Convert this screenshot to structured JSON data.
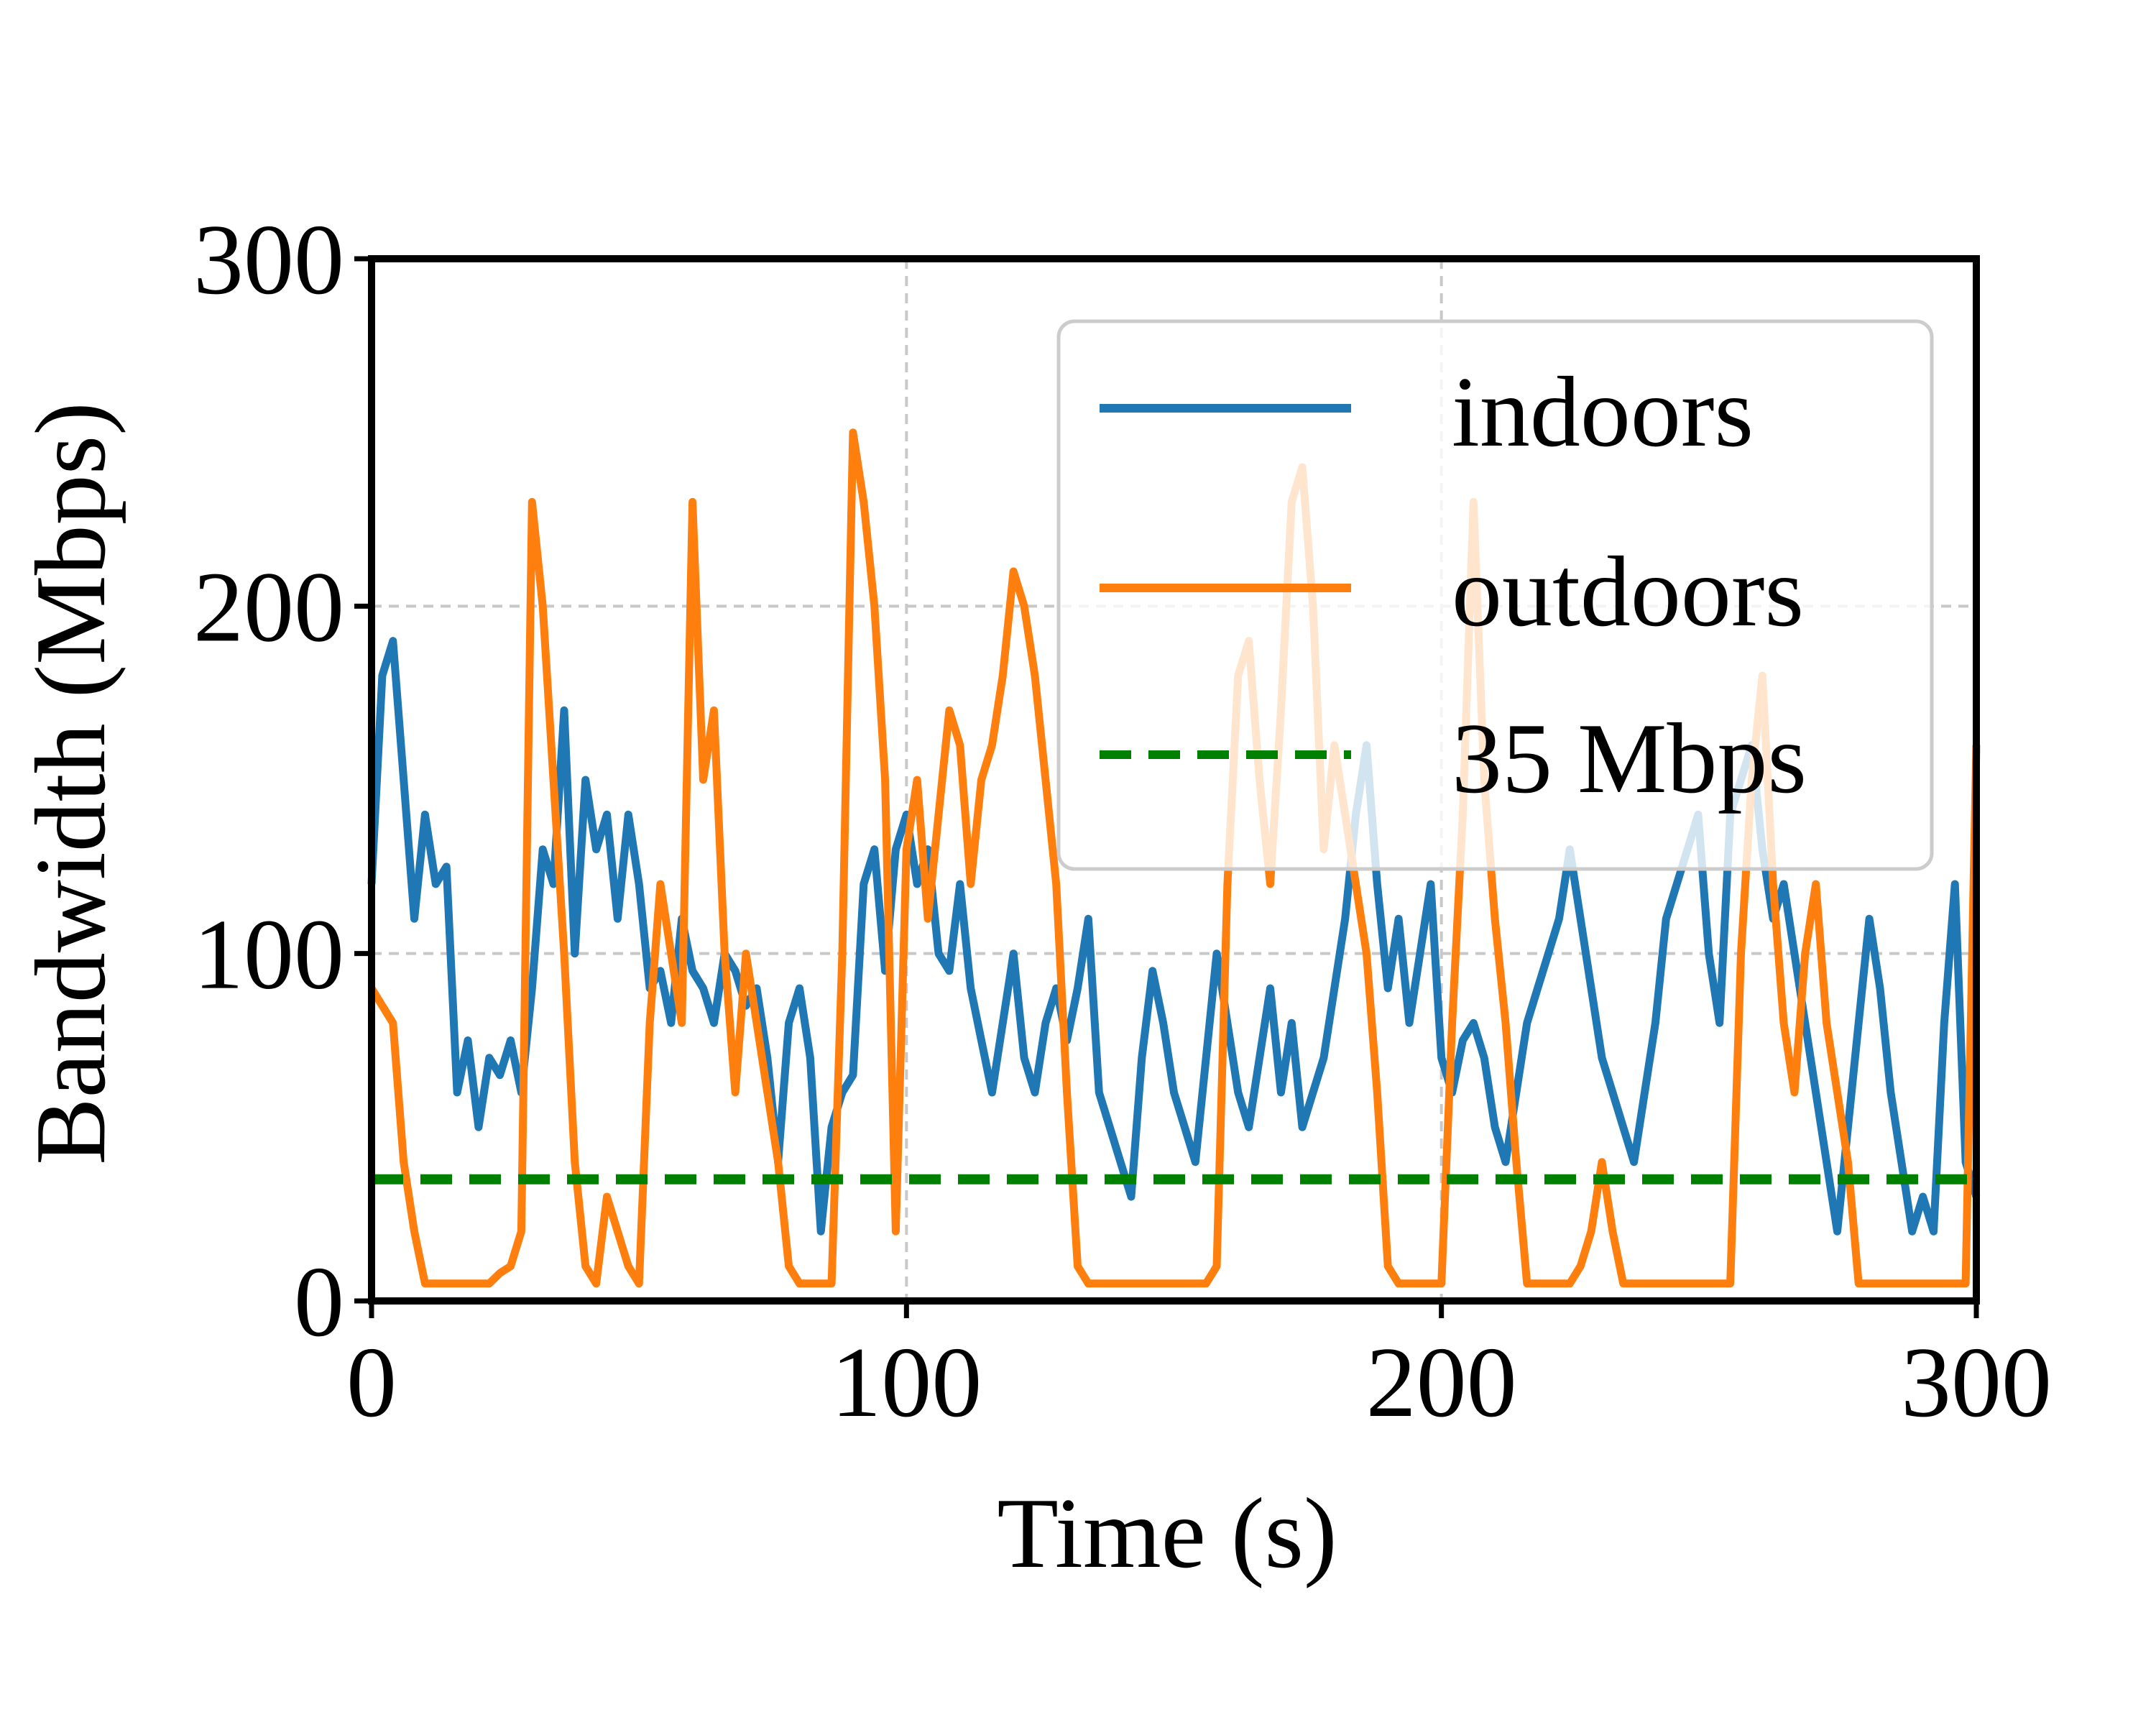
{
  "chart_data": {
    "type": "line",
    "title": "",
    "xlabel": "Time (s)",
    "ylabel": "Bandwidth (Mbps)",
    "xlim": [
      0,
      300
    ],
    "ylim": [
      0,
      300
    ],
    "xticks": [
      0,
      100,
      200,
      300
    ],
    "yticks": [
      0,
      100,
      200,
      300
    ],
    "xtick_labels": [
      "0",
      "100",
      "200",
      "300"
    ],
    "ytick_labels": [
      "0",
      "100",
      "200",
      "300"
    ],
    "grid": true,
    "legend_position": "top-right",
    "colors": {
      "indoors": "#1f77b4",
      "outdoors": "#ff7f0e",
      "threshold": "#008000",
      "grid": "#c8c8c8"
    },
    "series": [
      {
        "name": "indoors",
        "x": [
          0,
          2,
          4,
          6,
          8,
          10,
          12,
          14,
          16,
          18,
          20,
          22,
          24,
          26,
          28,
          30,
          32,
          34,
          36,
          38,
          40,
          42,
          44,
          46,
          48,
          50,
          52,
          54,
          56,
          58,
          60,
          62,
          64,
          66,
          68,
          70,
          72,
          74,
          76,
          78,
          80,
          82,
          84,
          86,
          88,
          90,
          92,
          94,
          96,
          98,
          100,
          102,
          104,
          106,
          108,
          110,
          112,
          114,
          116,
          118,
          120,
          122,
          124,
          126,
          128,
          130,
          132,
          134,
          136,
          138,
          140,
          142,
          144,
          146,
          148,
          150,
          152,
          154,
          156,
          158,
          160,
          162,
          164,
          166,
          168,
          170,
          172,
          174,
          176,
          178,
          180,
          182,
          184,
          186,
          188,
          190,
          192,
          194,
          196,
          198,
          200,
          202,
          204,
          206,
          208,
          210,
          212,
          214,
          216,
          218,
          220,
          222,
          224,
          226,
          228,
          230,
          232,
          234,
          236,
          238,
          240,
          242,
          244,
          246,
          248,
          250,
          252,
          254,
          256,
          258,
          260,
          262,
          264,
          266,
          268,
          270,
          272,
          274,
          276,
          278,
          280,
          282,
          284,
          286,
          288,
          290,
          292,
          294,
          296,
          298,
          300
        ],
        "values": [
          120,
          180,
          190,
          150,
          110,
          140,
          120,
          125,
          60,
          75,
          50,
          70,
          65,
          75,
          60,
          90,
          130,
          120,
          170,
          100,
          150,
          130,
          140,
          110,
          140,
          120,
          90,
          95,
          80,
          110,
          95,
          90,
          80,
          100,
          95,
          85,
          90,
          70,
          40,
          80,
          90,
          70,
          20,
          50,
          60,
          65,
          120,
          130,
          95,
          130,
          140,
          120,
          130,
          100,
          95,
          120,
          90,
          75,
          60,
          80,
          100,
          70,
          60,
          80,
          90,
          75,
          90,
          110,
          60,
          50,
          40,
          30,
          70,
          95,
          80,
          60,
          50,
          40,
          70,
          100,
          80,
          60,
          50,
          70,
          90,
          60,
          80,
          50,
          60,
          70,
          90,
          110,
          140,
          160,
          120,
          90,
          110,
          80,
          100,
          120,
          70,
          60,
          75,
          80,
          70,
          50,
          40,
          60,
          80,
          90,
          100,
          110,
          130,
          110,
          90,
          70,
          60,
          50,
          40,
          60,
          80,
          110,
          120,
          130,
          140,
          100,
          80,
          140,
          150,
          160,
          130,
          110,
          120,
          100,
          80,
          60,
          40,
          20,
          50,
          80,
          110,
          90,
          60,
          40,
          20,
          30,
          20,
          80,
          120,
          40,
          30
        ]
      },
      {
        "name": "outdoors",
        "x": [
          0,
          2,
          4,
          6,
          8,
          10,
          12,
          14,
          16,
          18,
          20,
          22,
          24,
          26,
          28,
          30,
          32,
          34,
          36,
          38,
          40,
          42,
          44,
          46,
          48,
          50,
          52,
          54,
          56,
          58,
          60,
          62,
          64,
          66,
          68,
          70,
          72,
          74,
          76,
          78,
          80,
          82,
          84,
          86,
          88,
          90,
          92,
          94,
          96,
          98,
          100,
          102,
          104,
          106,
          108,
          110,
          112,
          114,
          116,
          118,
          120,
          122,
          124,
          126,
          128,
          130,
          132,
          134,
          136,
          138,
          140,
          142,
          144,
          146,
          148,
          150,
          152,
          154,
          156,
          158,
          160,
          162,
          164,
          166,
          168,
          170,
          172,
          174,
          176,
          178,
          180,
          182,
          184,
          186,
          188,
          190,
          192,
          194,
          196,
          198,
          200,
          202,
          204,
          206,
          208,
          210,
          212,
          214,
          216,
          218,
          220,
          222,
          224,
          226,
          228,
          230,
          232,
          234,
          236,
          238,
          240,
          242,
          244,
          246,
          248,
          250,
          252,
          254,
          256,
          258,
          260,
          262,
          264,
          266,
          268,
          270,
          272,
          274,
          276,
          278,
          280,
          282,
          284,
          286,
          288,
          290,
          292,
          294,
          296,
          298,
          300
        ],
        "values": [
          90,
          85,
          80,
          40,
          20,
          5,
          5,
          5,
          5,
          5,
          5,
          5,
          8,
          10,
          20,
          230,
          200,
          150,
          100,
          40,
          10,
          5,
          30,
          20,
          10,
          5,
          80,
          120,
          100,
          80,
          230,
          150,
          170,
          100,
          60,
          100,
          80,
          60,
          40,
          10,
          5,
          5,
          5,
          5,
          100,
          250,
          230,
          200,
          150,
          20,
          130,
          150,
          110,
          140,
          170,
          160,
          120,
          150,
          160,
          180,
          210,
          200,
          180,
          150,
          120,
          60,
          10,
          5,
          5,
          5,
          5,
          5,
          5,
          5,
          5,
          5,
          5,
          5,
          5,
          10,
          120,
          180,
          190,
          150,
          120,
          170,
          230,
          240,
          200,
          130,
          160,
          140,
          120,
          100,
          60,
          10,
          5,
          5,
          5,
          5,
          5,
          80,
          140,
          230,
          150,
          110,
          80,
          40,
          5,
          5,
          5,
          5,
          5,
          10,
          20,
          40,
          20,
          5,
          5,
          5,
          5,
          5,
          5,
          5,
          5,
          5,
          5,
          5,
          100,
          150,
          180,
          120,
          80,
          60,
          100,
          120,
          80,
          60,
          40,
          5,
          5,
          5,
          5,
          5,
          5,
          5,
          5,
          5,
          5,
          5,
          160
        ]
      },
      {
        "name": "35 Mbps",
        "style": "dashed",
        "x": [
          0,
          300
        ],
        "values": [
          35,
          35
        ]
      }
    ]
  }
}
